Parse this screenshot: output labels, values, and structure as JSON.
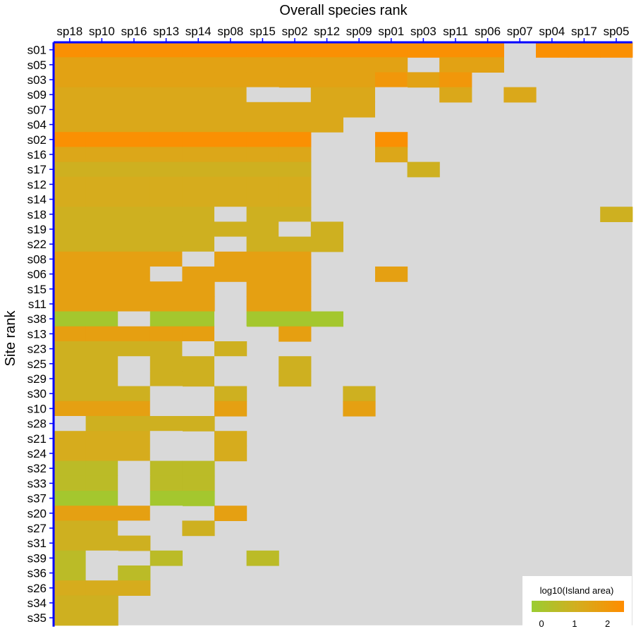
{
  "chart_data": {
    "type": "heatmap",
    "xlabel": "Overall species rank",
    "ylabel": "Site rank",
    "x_categories": [
      "sp18",
      "sp10",
      "sp16",
      "sp13",
      "sp14",
      "sp08",
      "sp15",
      "sp02",
      "sp12",
      "sp09",
      "sp01",
      "sp03",
      "sp11",
      "sp06",
      "sp07",
      "sp04",
      "sp17",
      "sp05"
    ],
    "y_categories": [
      "s01",
      "s05",
      "s03",
      "s09",
      "s07",
      "s04",
      "s02",
      "s16",
      "s17",
      "s12",
      "s14",
      "s18",
      "s19",
      "s22",
      "s08",
      "s06",
      "s15",
      "s11",
      "s38",
      "s13",
      "s23",
      "s25",
      "s29",
      "s30",
      "s10",
      "s28",
      "s21",
      "s24",
      "s32",
      "s33",
      "s37",
      "s20",
      "s27",
      "s31",
      "s39",
      "s36",
      "s26",
      "s34",
      "s35"
    ],
    "cell_rows": [
      "AAAAAAAAAAAAAA.AAA",
      "BBBBBBBBBBB.BB....",
      "BBBBBBBBBBCDC.....",
      "EEEEEEF.EEF.E.E...",
      "EEEEEEEEEEF.......",
      "EEEEEEEEE.........",
      "AAAAAAAA..A.......",
      "GGGGGGGG..G.......",
      "HHHHHHHH...H......",
      "IIIIIIII..........",
      "IIIIIIII..........",
      "HHHHHFHH.........H",
      "HHHHHHHFH.........",
      "HHHHHFHHH.........",
      "JJJJFJJJ..........",
      "JJJFJJJJ..J.......",
      "JJJJJ.JJ..........",
      "JJJJJ.JJ..........",
      "KKFKKFKKK.........",
      "LLLLLF.L..........",
      "HHHHFH............",
      "HHFHHF.H..........",
      "HHFHHF.H..........",
      "HHHF.H...H........",
      "JJJF.J...J........",
      "FHHHH.............",
      "IIIF.I............",
      "IIIF.I............",
      "MMFMM.............",
      "MMFMM.............",
      "KKFKK.............",
      "JJJF.J............",
      "HHF.H.............",
      "HHH...............",
      "MF.M..M...........",
      "MFM...............",
      "III...............",
      "HH................",
      "HH................"
    ],
    "cell_values": {
      "A": 2.35,
      "B": 1.55,
      "C": 2.05,
      "D": 1.55,
      "E": 1.3,
      "G": 1.35,
      "H": 0.95,
      "I": 1.15,
      "J": 1.65,
      "K": -0.05,
      "L": 1.7,
      "M": 0.5
    },
    "blank_code": ".",
    "filler_code": "F",
    "legend": {
      "title": "log10(Island area)",
      "ticks": [
        "0",
        "1",
        "2"
      ],
      "tick_values": [
        0,
        1,
        2
      ],
      "range": [
        -0.3,
        2.5
      ],
      "color_low": "#9acd32",
      "color_mid": "#d4ad1e",
      "color_high": "#ff8c00",
      "placement": "bottom-right"
    },
    "colors": {
      "empty": "#d9d9d9",
      "axis": "#0000ff",
      "background": "#ffffff"
    }
  }
}
